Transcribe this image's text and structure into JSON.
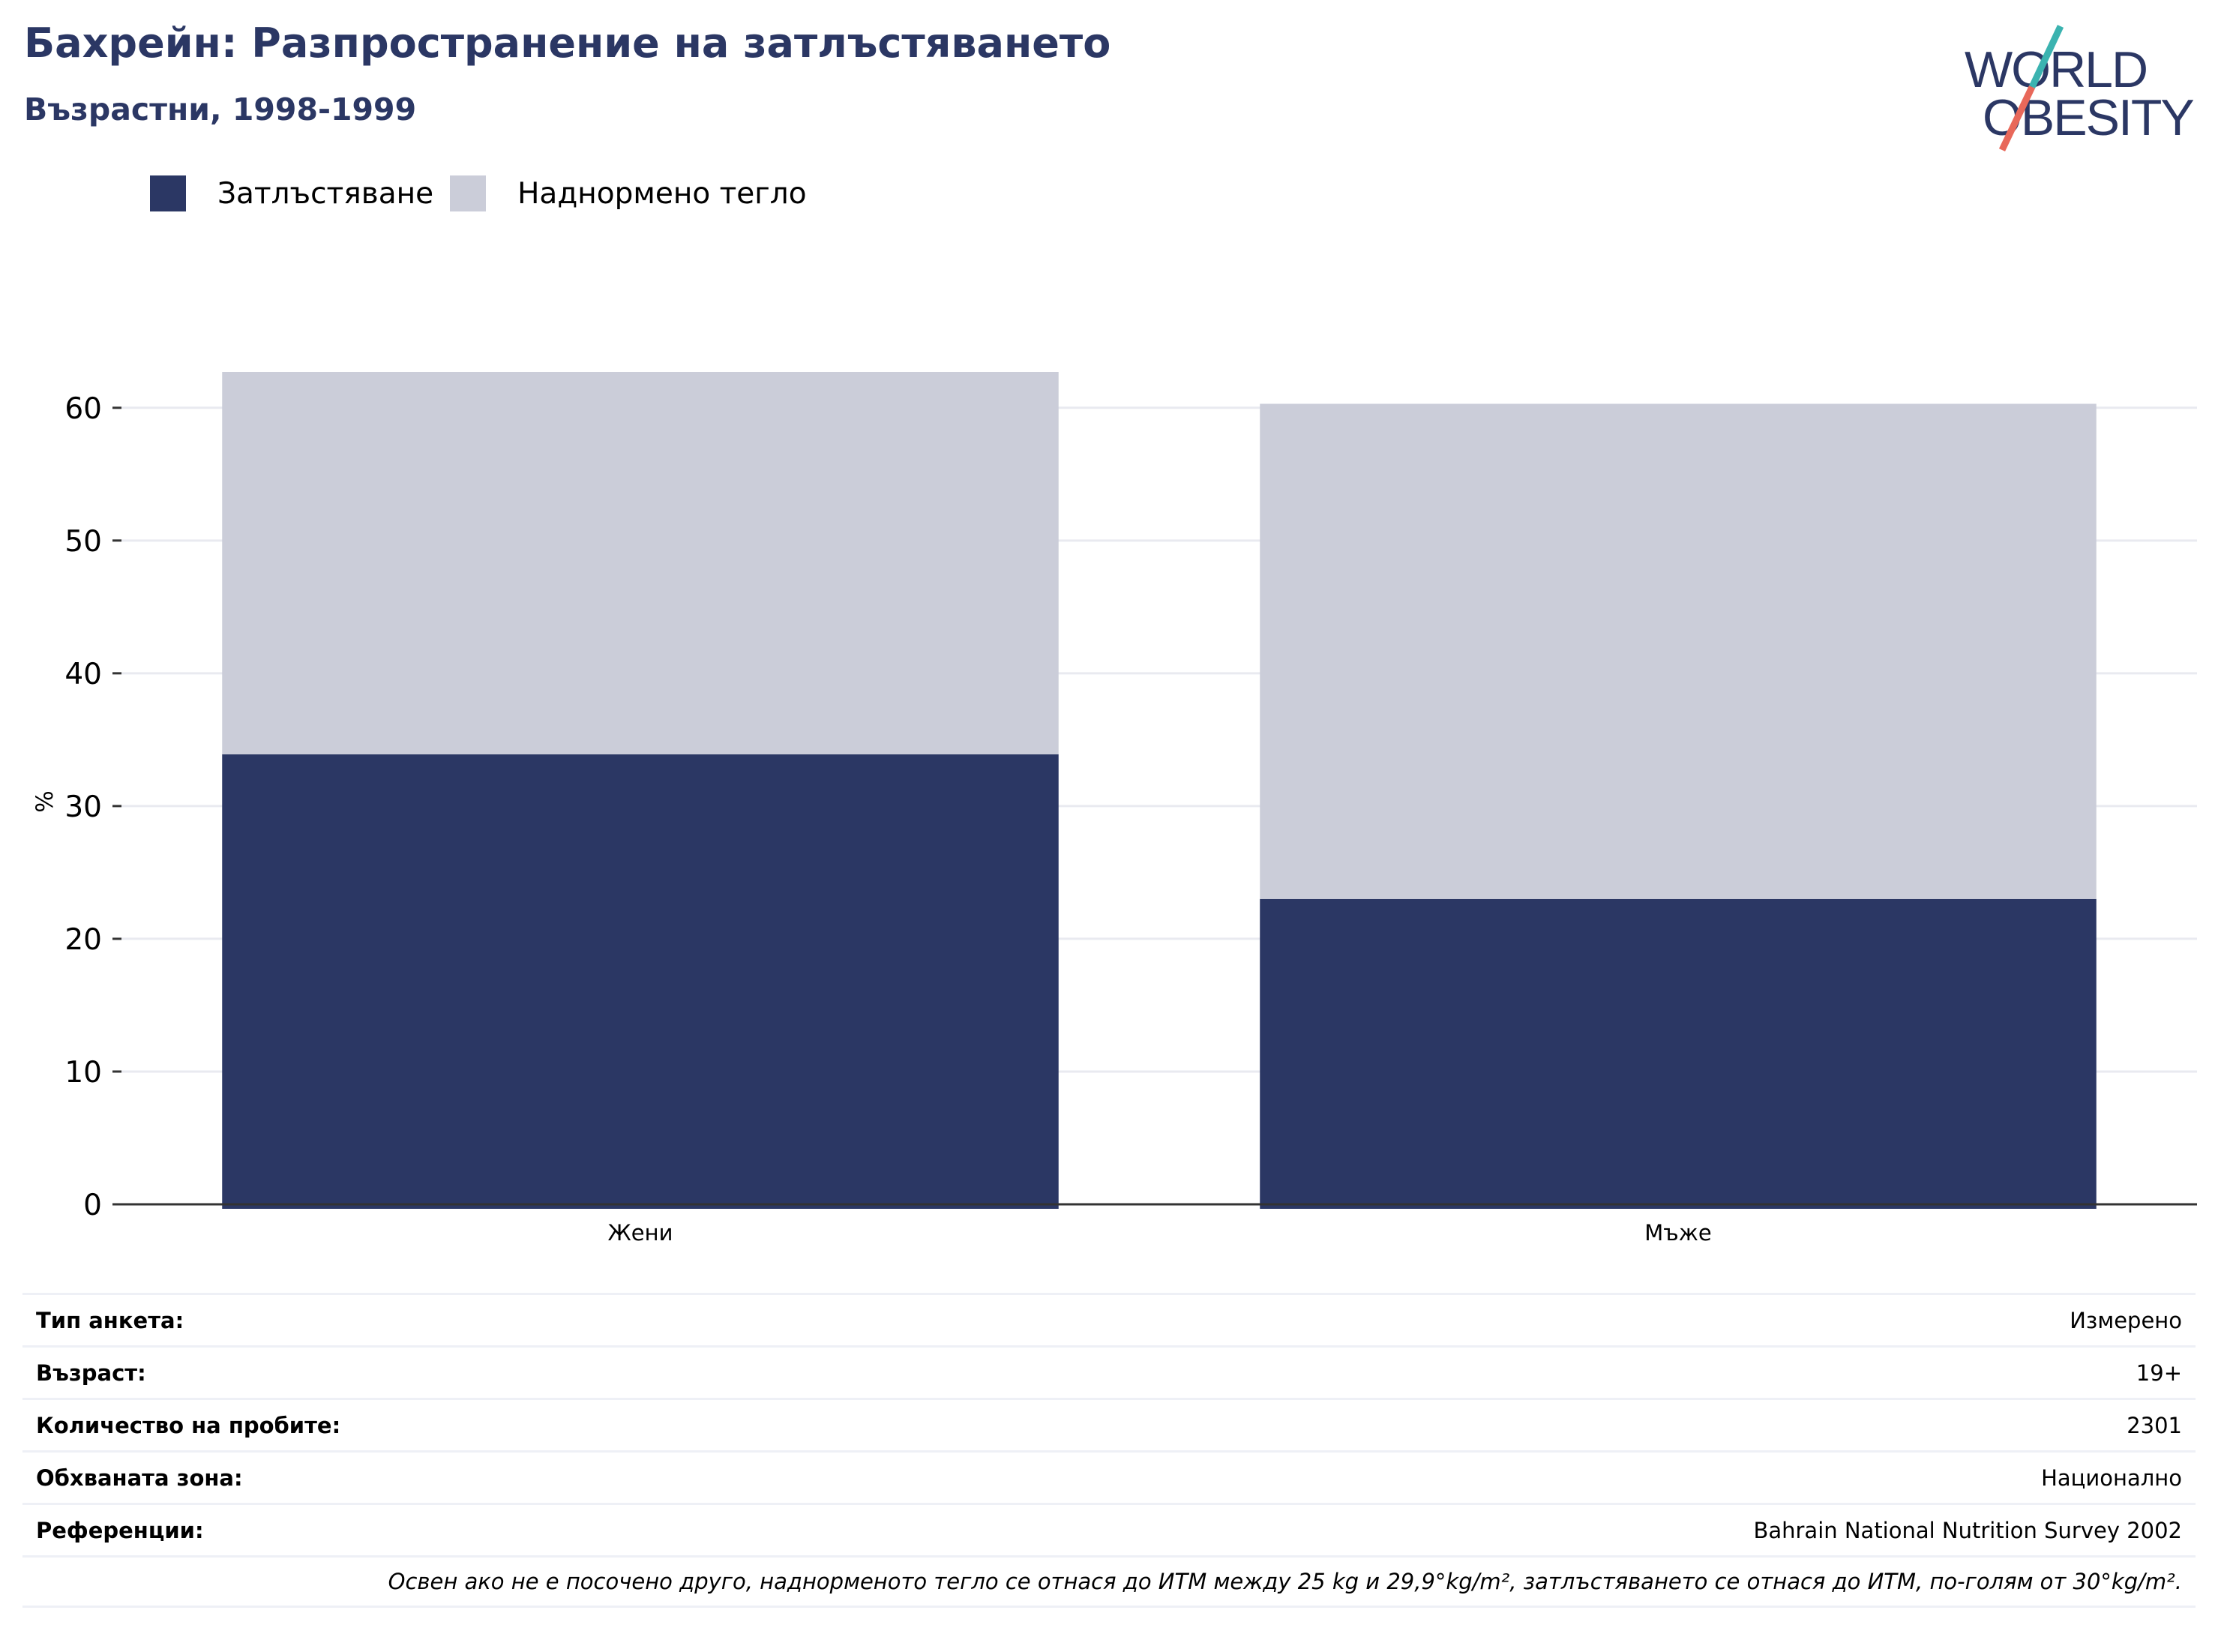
{
  "header": {
    "title": "Бахрейн: Разпространение на затлъстяването",
    "subtitle": "Възрастни, 1998-1999"
  },
  "logo": {
    "line1": "WORLD",
    "line2": "OBESITY"
  },
  "colors": {
    "obesity": "#2b3764",
    "overweight": "#cbcdd9",
    "title": "#2b3764",
    "grid": "#e9eaf0",
    "logo_teal": "#3bb3b0",
    "logo_coral": "#e8685a"
  },
  "chart_data": {
    "type": "bar",
    "stacked": true,
    "categories": [
      "Жени",
      "Мъже"
    ],
    "series": [
      {
        "name": "Затлъстяване",
        "values": [
          33.9,
          23.0
        ]
      },
      {
        "name": "Наднормено тегло",
        "values": [
          28.8,
          37.3
        ]
      }
    ],
    "ylabel": "%",
    "xlabel": "",
    "ylim": [
      0,
      62.7
    ],
    "yticks": [
      0,
      10,
      20,
      30,
      40,
      50,
      60
    ],
    "grid": true,
    "legend": "top-left"
  },
  "meta": {
    "rows": [
      {
        "key": "Тип анкета:",
        "value": "Измерено"
      },
      {
        "key": "Възраст:",
        "value": "19+"
      },
      {
        "key": "Количество на пробите:",
        "value": "2301"
      },
      {
        "key": "Обхваната зона:",
        "value": "Национално"
      },
      {
        "key": "Референции:",
        "value": "Bahrain National Nutrition Survey 2002"
      }
    ],
    "note": "Освен ако не е посочено друго, наднорменото тегло се отнася до ИТМ между 25 kg и 29,9°kg/m², затлъстяването се отнася до ИТМ, по-голям от 30°kg/m²."
  }
}
